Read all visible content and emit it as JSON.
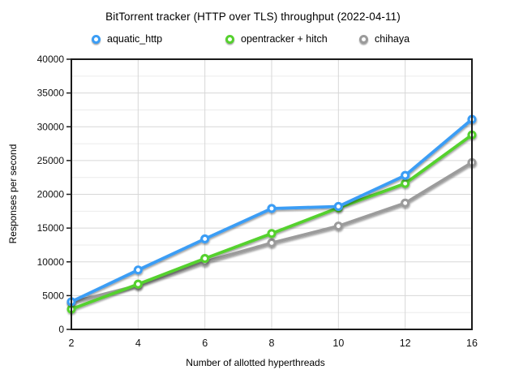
{
  "chart_data": {
    "type": "line",
    "title": "BitTorrent tracker (HTTP over TLS) throughput (2022-04-11)",
    "xlabel": "Number of allotted hyperthreads",
    "ylabel": "Responses per second",
    "categories": [
      2,
      4,
      6,
      8,
      10,
      12,
      16
    ],
    "x_axis_style": "categorical-even-spacing",
    "ylim": [
      0,
      40000
    ],
    "y_major_step": 5000,
    "y_minor_step": 2500,
    "grid": true,
    "legend_position": "top",
    "series": [
      {
        "name": "aquatic_http",
        "color": "#3b9df5",
        "values": [
          4100,
          8800,
          13400,
          17900,
          18200,
          22800,
          31100
        ]
      },
      {
        "name": "opentracker + hitch",
        "color": "#55d12e",
        "values": [
          3000,
          6700,
          10500,
          14200,
          18000,
          21600,
          28800
        ]
      },
      {
        "name": "chihaya",
        "color": "#9b9b9b",
        "values": [
          4000,
          6500,
          10000,
          12800,
          15300,
          18700,
          24700
        ]
      }
    ],
    "colors": {
      "major_grid": "#d7d7d7",
      "minor_grid": "#ebebeb",
      "axis_border": "#1a1a1a",
      "tick_text": "#111111"
    }
  }
}
